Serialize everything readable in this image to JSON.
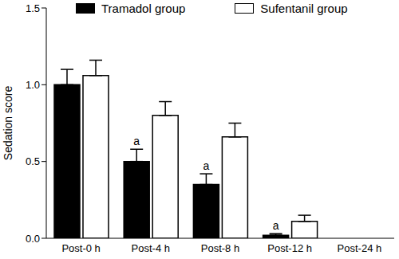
{
  "chart_data": {
    "type": "bar",
    "categories": [
      "Post-0 h",
      "Post-4 h",
      "Post-8 h",
      "Post-12 h",
      "Post-24 h"
    ],
    "series": [
      {
        "name": "Tramadol group",
        "color": "#000000",
        "values": [
          1.0,
          0.5,
          0.35,
          0.02,
          0
        ],
        "errors": [
          0.1,
          0.08,
          0.07,
          0.01,
          0
        ]
      },
      {
        "name": "Sufentanil group",
        "color": "#ffffff",
        "values": [
          1.06,
          0.8,
          0.66,
          0.11,
          0
        ],
        "errors": [
          0.1,
          0.09,
          0.09,
          0.04,
          0
        ]
      }
    ],
    "y_label": "Sedation score",
    "ylim": [
      0,
      1.5
    ],
    "yticks": [
      {
        "value": 0,
        "label": "0.0"
      },
      0.5,
      {
        "value": 1,
        "label": "1.0"
      },
      1.5
    ],
    "annotations": [
      {
        "text": "a",
        "category": "Post-4 h",
        "series": "Tramadol group"
      },
      {
        "text": "a",
        "category": "Post-8 h",
        "series": "Tramadol group"
      },
      {
        "text": "a",
        "category": "Post-12 h",
        "series": "Tramadol group"
      }
    ],
    "legend": "top",
    "grid": false
  }
}
